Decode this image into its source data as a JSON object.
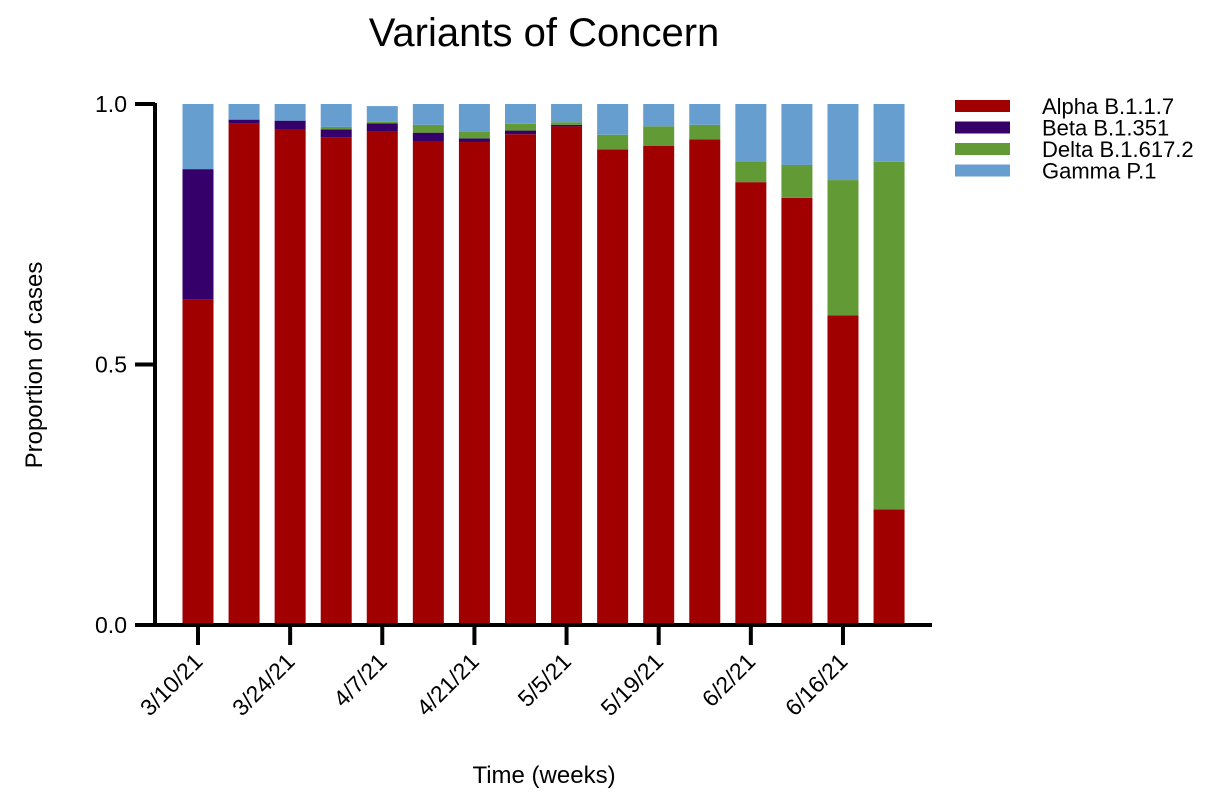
{
  "chart_data": {
    "type": "bar",
    "stacked": true,
    "title": "Variants of Concern",
    "xlabel": "Time (weeks)",
    "ylabel": "Proportion of cases",
    "ylim": [
      0,
      1
    ],
    "yticks": [
      "0.0",
      "0.5",
      "1.0"
    ],
    "x_tick_labels": [
      "3/10/21",
      "3/24/21",
      "4/7/21",
      "4/21/21",
      "5/5/21",
      "5/19/21",
      "6/2/21",
      "6/16/21"
    ],
    "bar_count": 16,
    "grid": false,
    "legend_position": "top-right",
    "series": [
      {
        "name": "Alpha B.1.1.7",
        "color": "#a00000",
        "values": [
          0.625,
          0.962,
          0.952,
          0.936,
          0.947,
          0.929,
          0.927,
          0.942,
          0.957,
          0.913,
          0.92,
          0.932,
          0.85,
          0.82,
          0.594,
          0.222
        ]
      },
      {
        "name": "Beta B.1.351",
        "color": "#35006a",
        "values": [
          0.25,
          0.008,
          0.016,
          0.015,
          0.016,
          0.016,
          0.007,
          0.007,
          0.003,
          0,
          0,
          0,
          0,
          0,
          0,
          0
        ]
      },
      {
        "name": "Delta B.1.617.2",
        "color": "#629b35",
        "values": [
          0,
          0,
          0,
          0.005,
          0.003,
          0.015,
          0.013,
          0.013,
          0.005,
          0.028,
          0.037,
          0.028,
          0.04,
          0.063,
          0.26,
          0.667
        ]
      },
      {
        "name": "Gamma P.1",
        "color": "#679ed0",
        "values": [
          0.125,
          0.03,
          0.032,
          0.044,
          0.03,
          0.04,
          0.053,
          0.038,
          0.035,
          0.059,
          0.043,
          0.04,
          0.11,
          0.117,
          0.146,
          0.111
        ]
      }
    ]
  }
}
